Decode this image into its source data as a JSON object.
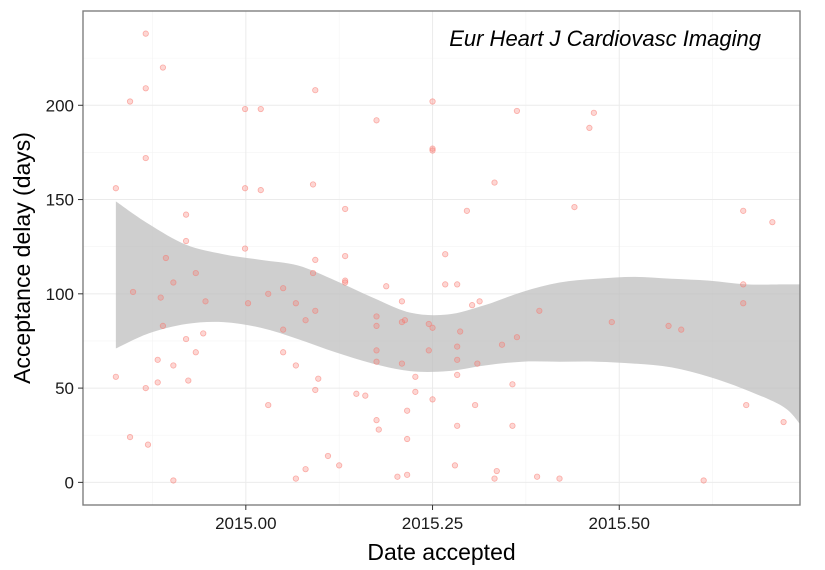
{
  "chart_data": {
    "type": "scatter",
    "title": "",
    "annotation": "Eur Heart J Cardiovasc Imaging",
    "xlabel": "Date accepted",
    "ylabel": "Acceptance delay (days)",
    "xlim": [
      2014.782,
      2015.742
    ],
    "ylim": [
      -12,
      250
    ],
    "x_ticks": [
      2015.0,
      2015.25,
      2015.5
    ],
    "x_tick_labels": [
      "2015.00",
      "2015.25",
      "2015.50"
    ],
    "y_ticks": [
      0,
      50,
      100,
      150,
      200
    ],
    "y_tick_labels": [
      "0",
      "50",
      "100",
      "150",
      "200"
    ],
    "grid": true,
    "legend": "none",
    "colors": {
      "points": "#f8766d",
      "ribbon": "#bfbfbf",
      "panel_border": "#7f7f7f",
      "grid": "#ebebeb"
    },
    "series": [
      {
        "kind": "points",
        "points": [
          [
            2014.826,
            156
          ],
          [
            2014.826,
            56
          ],
          [
            2014.845,
            24
          ],
          [
            2014.845,
            202
          ],
          [
            2014.849,
            101
          ],
          [
            2014.866,
            238
          ],
          [
            2014.866,
            209
          ],
          [
            2014.866,
            172
          ],
          [
            2014.866,
            50
          ],
          [
            2014.869,
            20
          ],
          [
            2014.882,
            65
          ],
          [
            2014.882,
            53
          ],
          [
            2014.886,
            98
          ],
          [
            2014.889,
            220
          ],
          [
            2014.889,
            83
          ],
          [
            2014.893,
            119
          ],
          [
            2014.903,
            106
          ],
          [
            2014.903,
            62
          ],
          [
            2014.903,
            1
          ],
          [
            2014.92,
            142
          ],
          [
            2014.92,
            128
          ],
          [
            2014.92,
            76
          ],
          [
            2014.923,
            54
          ],
          [
            2014.933,
            111
          ],
          [
            2014.933,
            69
          ],
          [
            2014.943,
            79
          ],
          [
            2014.946,
            96
          ],
          [
            2014.999,
            198
          ],
          [
            2014.999,
            156
          ],
          [
            2014.999,
            124
          ],
          [
            2015.003,
            95
          ],
          [
            2015.02,
            198
          ],
          [
            2015.02,
            155
          ],
          [
            2015.03,
            100
          ],
          [
            2015.03,
            41
          ],
          [
            2015.05,
            103
          ],
          [
            2015.05,
            81
          ],
          [
            2015.05,
            69
          ],
          [
            2015.067,
            95
          ],
          [
            2015.067,
            62
          ],
          [
            2015.067,
            2
          ],
          [
            2015.08,
            86
          ],
          [
            2015.08,
            7
          ],
          [
            2015.09,
            158
          ],
          [
            2015.09,
            111
          ],
          [
            2015.093,
            208
          ],
          [
            2015.093,
            118
          ],
          [
            2015.093,
            91
          ],
          [
            2015.093,
            49
          ],
          [
            2015.097,
            55
          ],
          [
            2015.11,
            14
          ],
          [
            2015.125,
            9
          ],
          [
            2015.133,
            145
          ],
          [
            2015.133,
            120
          ],
          [
            2015.133,
            107
          ],
          [
            2015.133,
            106
          ],
          [
            2015.148,
            47
          ],
          [
            2015.16,
            46
          ],
          [
            2015.175,
            192
          ],
          [
            2015.175,
            88
          ],
          [
            2015.175,
            83
          ],
          [
            2015.175,
            70
          ],
          [
            2015.175,
            64
          ],
          [
            2015.175,
            33
          ],
          [
            2015.178,
            28
          ],
          [
            2015.188,
            104
          ],
          [
            2015.203,
            3
          ],
          [
            2015.209,
            96
          ],
          [
            2015.209,
            85
          ],
          [
            2015.209,
            63
          ],
          [
            2015.213,
            86
          ],
          [
            2015.216,
            38
          ],
          [
            2015.216,
            23
          ],
          [
            2015.216,
            4
          ],
          [
            2015.227,
            56
          ],
          [
            2015.227,
            48
          ],
          [
            2015.245,
            84
          ],
          [
            2015.245,
            70
          ],
          [
            2015.25,
            202
          ],
          [
            2015.25,
            177
          ],
          [
            2015.25,
            176
          ],
          [
            2015.25,
            82
          ],
          [
            2015.25,
            44
          ],
          [
            2015.267,
            121
          ],
          [
            2015.267,
            105
          ],
          [
            2015.28,
            9
          ],
          [
            2015.283,
            105
          ],
          [
            2015.283,
            72
          ],
          [
            2015.283,
            65
          ],
          [
            2015.283,
            57
          ],
          [
            2015.283,
            30
          ],
          [
            2015.287,
            80
          ],
          [
            2015.296,
            144
          ],
          [
            2015.303,
            94
          ],
          [
            2015.307,
            41
          ],
          [
            2015.31,
            63
          ],
          [
            2015.313,
            96
          ],
          [
            2015.333,
            159
          ],
          [
            2015.333,
            2
          ],
          [
            2015.336,
            6
          ],
          [
            2015.343,
            73
          ],
          [
            2015.357,
            52
          ],
          [
            2015.357,
            30
          ],
          [
            2015.363,
            197
          ],
          [
            2015.363,
            77
          ],
          [
            2015.39,
            3
          ],
          [
            2015.393,
            91
          ],
          [
            2015.42,
            2
          ],
          [
            2015.44,
            146
          ],
          [
            2015.46,
            188
          ],
          [
            2015.466,
            196
          ],
          [
            2015.49,
            85
          ],
          [
            2015.566,
            83
          ],
          [
            2015.583,
            81
          ],
          [
            2015.613,
            1
          ],
          [
            2015.666,
            144
          ],
          [
            2015.666,
            105
          ],
          [
            2015.666,
            95
          ],
          [
            2015.67,
            41
          ],
          [
            2015.705,
            138
          ],
          [
            2015.72,
            32
          ]
        ]
      },
      {
        "kind": "ribbon",
        "x": [
          2014.826,
          2014.87,
          2014.92,
          2014.97,
          2015.02,
          2015.07,
          2015.12,
          2015.17,
          2015.22,
          2015.27,
          2015.32,
          2015.37,
          2015.42,
          2015.47,
          2015.52,
          2015.57,
          2015.62,
          2015.67,
          2015.72,
          2015.742
        ],
        "upper": [
          149,
          137,
          126,
          121,
          118,
          115,
          107,
          98,
          90,
          89,
          94,
          101,
          106,
          108,
          109,
          108,
          107,
          105,
          105,
          105
        ],
        "lower": [
          71,
          79,
          84,
          85,
          82,
          76,
          69,
          63,
          59,
          59,
          62,
          64,
          64,
          64,
          63,
          61,
          56,
          49,
          40,
          31
        ]
      }
    ]
  }
}
